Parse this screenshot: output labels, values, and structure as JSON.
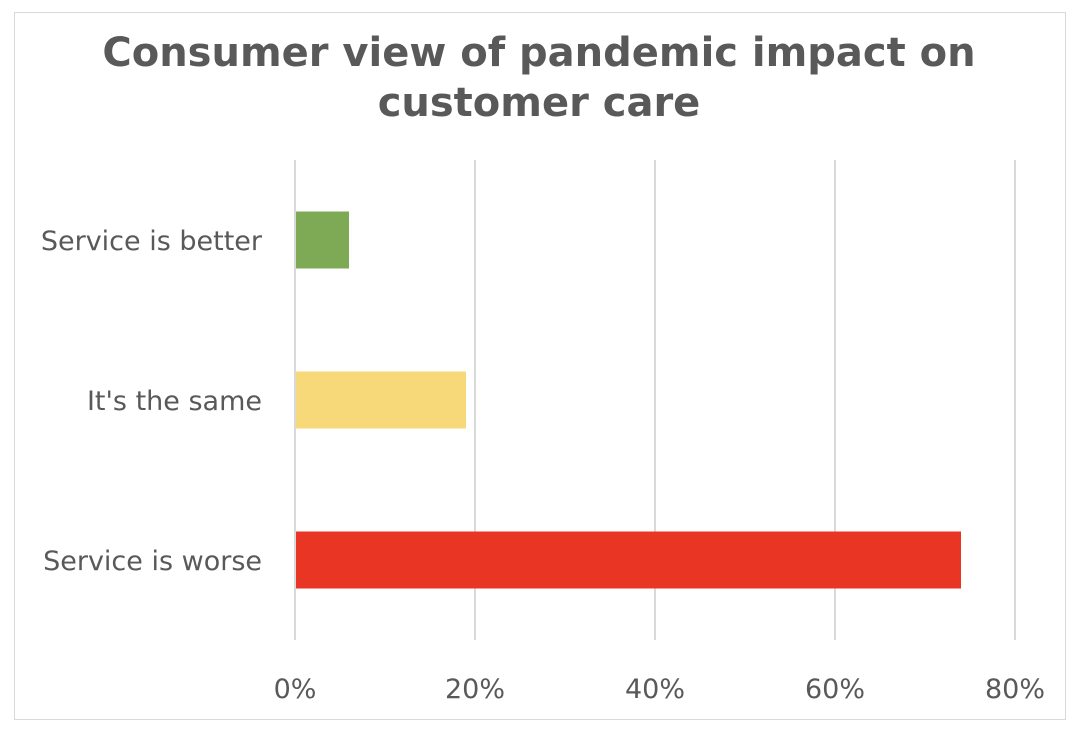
{
  "chart_data": {
    "type": "bar",
    "orientation": "horizontal",
    "title": "Consumer view of pandemic impact on customer care",
    "title_lines": [
      "Consumer view of pandemic impact on",
      "customer care"
    ],
    "categories": [
      "Service is better",
      "It's the same",
      "Service is worse"
    ],
    "values": [
      6,
      19,
      74
    ],
    "colors": [
      "#7faa55",
      "#f7d979",
      "#e83524"
    ],
    "xlim": [
      0,
      80
    ],
    "x_ticks": [
      0,
      20,
      40,
      60,
      80
    ],
    "x_tick_labels": [
      "0%",
      "20%",
      "40%",
      "60%",
      "80%"
    ],
    "xlabel": "",
    "ylabel": "",
    "grid": "vertical",
    "legend": "none"
  }
}
